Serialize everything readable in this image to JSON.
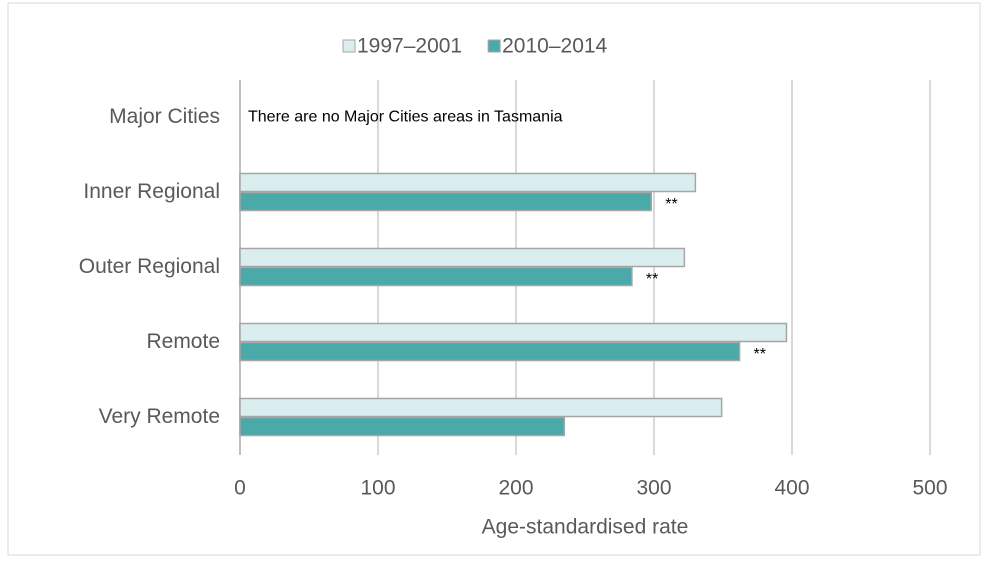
{
  "chart_data": {
    "type": "hbar",
    "categories": [
      "Major Cities",
      "Inner Regional",
      "Outer Regional",
      "Remote",
      "Very Remote"
    ],
    "series": [
      {
        "name": "1997–2001",
        "color": "#daeef0",
        "values": [
          null,
          330,
          322,
          396,
          349
        ]
      },
      {
        "name": "2010–2014",
        "color": "#4aa9a9",
        "values": [
          null,
          298,
          284,
          362,
          235
        ]
      }
    ],
    "xlabel": "Age-standardised rate",
    "xlim": [
      0,
      500
    ],
    "xticks": [
      0,
      100,
      200,
      300,
      400,
      500
    ],
    "grid": true,
    "legend": "top",
    "annotations": [
      {
        "text": "There are no Major Cities areas in Tasmania",
        "category": "Major Cities"
      },
      {
        "text": "**",
        "category": "Inner Regional"
      },
      {
        "text": "**",
        "category": "Outer Regional"
      },
      {
        "text": "**",
        "category": "Remote"
      }
    ]
  }
}
